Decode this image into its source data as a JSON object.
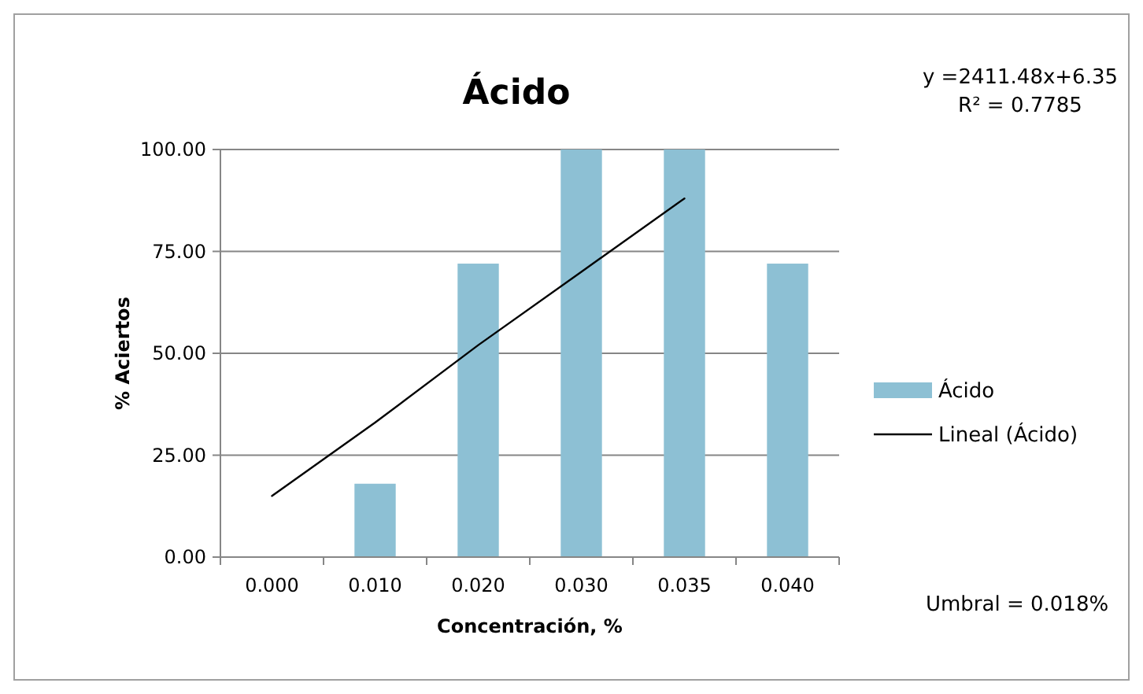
{
  "chart_data": {
    "type": "bar",
    "title": "Ácido",
    "xlabel": "Concentración, %",
    "ylabel": "% Aciertos",
    "categories": [
      "0.000",
      "0.010",
      "0.020",
      "0.030",
      "0.035",
      "0.040"
    ],
    "series": [
      {
        "name": "Ácido",
        "color": "#8dc0d4",
        "values": [
          0,
          18,
          72,
          100,
          100,
          72
        ]
      },
      {
        "name": "Lineal (Ácido)",
        "type": "line",
        "color": "#000000",
        "x": [
          "0.000",
          "0.010",
          "0.020",
          "0.030",
          "0.035"
        ],
        "values": [
          15,
          33,
          52,
          70,
          88
        ]
      }
    ],
    "ylim": [
      0,
      100
    ],
    "yticks": [
      {
        "value": 0,
        "label": "0.00"
      },
      {
        "value": 25,
        "label": "25.00"
      },
      {
        "value": 50,
        "label": "50.00"
      },
      {
        "value": 75,
        "label": "75.00"
      },
      {
        "value": 100,
        "label": "100.00"
      }
    ],
    "grid": "y",
    "legend": "right",
    "annotations": [
      "y =2411.48x+6.35",
      "R² = 0.7785",
      "Umbral = 0.018%"
    ]
  }
}
